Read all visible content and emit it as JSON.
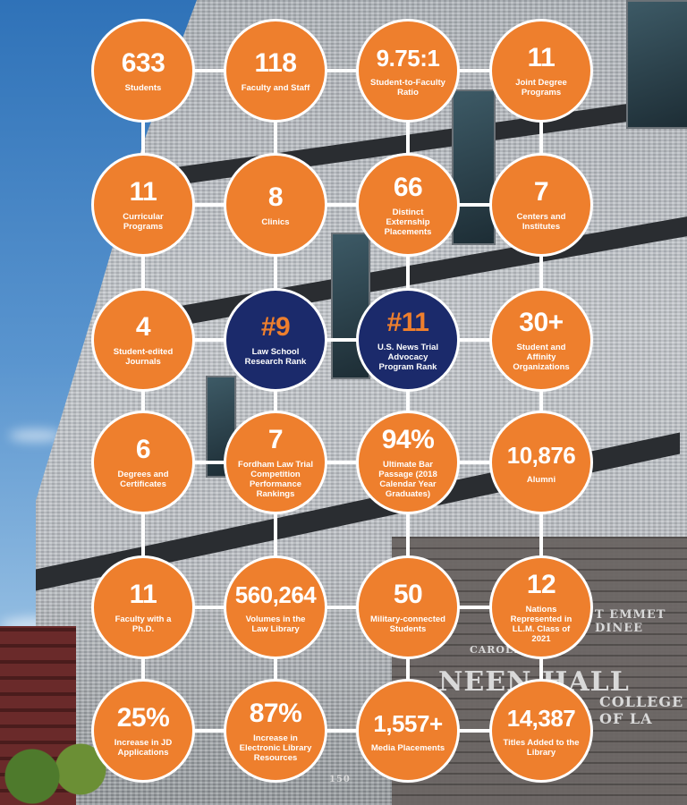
{
  "colors": {
    "orange": "#ee7f2d",
    "navy": "#1b2a6b",
    "white": "#ffffff"
  },
  "building_sign": {
    "line1": "CAROLYN",
    "line2": "T EMMET DINEE",
    "line3": "NEEN HALL",
    "line4": "COLLEGE OF LA",
    "number": "150"
  },
  "stats": [
    {
      "value": "633",
      "label": "Students",
      "style": "orange"
    },
    {
      "value": "118",
      "label": "Faculty and Staff",
      "style": "orange"
    },
    {
      "value": "9.75:1",
      "label": "Student-to-Faculty Ratio",
      "style": "orange"
    },
    {
      "value": "11",
      "label": "Joint Degree Programs",
      "style": "orange"
    },
    {
      "value": "11",
      "label": "Curricular Programs",
      "style": "orange"
    },
    {
      "value": "8",
      "label": "Clinics",
      "style": "orange"
    },
    {
      "value": "66",
      "label": "Distinct Externship Placements",
      "style": "orange"
    },
    {
      "value": "7",
      "label": "Centers and Institutes",
      "style": "orange"
    },
    {
      "value": "4",
      "label": "Student-edited Journals",
      "style": "orange"
    },
    {
      "value": "#9",
      "label": "Law School Research Rank",
      "style": "navy"
    },
    {
      "value": "#11",
      "label": "U.S. News Trial Advocacy Program Rank",
      "style": "navy"
    },
    {
      "value": "30+",
      "label": "Student and Affinity Organizations",
      "style": "orange"
    },
    {
      "value": "6",
      "label": "Degrees and Certificates",
      "style": "orange"
    },
    {
      "value": "7",
      "label": "Fordham Law Trial Competition Performance Rankings",
      "style": "orange"
    },
    {
      "value": "94%",
      "label": "Ultimate Bar Passage (2018 Calendar Year Graduates)",
      "style": "orange"
    },
    {
      "value": "10,876",
      "label": "Alumni",
      "style": "orange"
    },
    {
      "value": "11",
      "label": "Faculty with a Ph.D.",
      "style": "orange"
    },
    {
      "value": "560,264",
      "label": "Volumes in the Law Library",
      "style": "orange"
    },
    {
      "value": "50",
      "label": "Military-connected Students",
      "style": "orange"
    },
    {
      "value": "12",
      "label": "Nations Represented in LL.M. Class of 2021",
      "style": "orange"
    },
    {
      "value": "25%",
      "label": "Increase in JD Applications",
      "style": "orange"
    },
    {
      "value": "87%",
      "label": "Increase in Electronic Library Resources",
      "style": "orange"
    },
    {
      "value": "1,557+",
      "label": "Media Placements",
      "style": "orange"
    },
    {
      "value": "14,387",
      "label": "Titles Added to the Library",
      "style": "orange"
    }
  ]
}
